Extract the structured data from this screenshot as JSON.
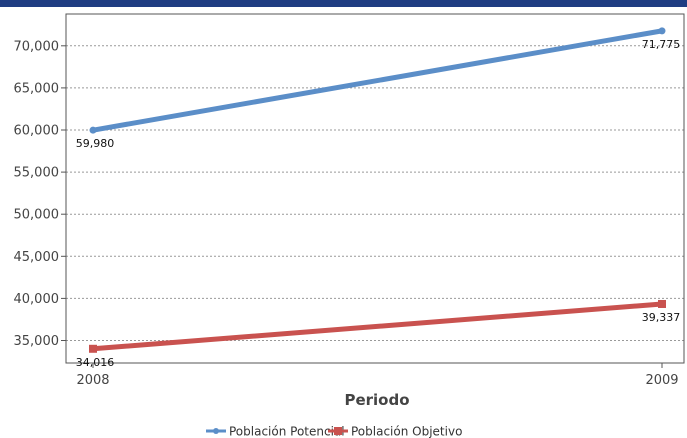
{
  "colors": {
    "top_bar": "#1f3d82",
    "gridline": "#999999",
    "axis": "#555555"
  },
  "chart_data": {
    "type": "line",
    "title": "",
    "xlabel": "Periodo",
    "ylabel": "",
    "categories": [
      "2008",
      "2009"
    ],
    "ylim": [
      32000,
      73000
    ],
    "yticks": [
      35000,
      40000,
      45000,
      50000,
      55000,
      60000,
      65000,
      70000
    ],
    "ytick_labels": [
      "35,000",
      "40,000",
      "45,000",
      "50,000",
      "55,000",
      "60,000",
      "65,000",
      "70,000"
    ],
    "grid": true,
    "legend_position": "bottom",
    "series": [
      {
        "name": "Población Potencial",
        "color": "#5b8ec8",
        "marker": "circle",
        "values": [
          59980,
          71775
        ],
        "labels": [
          "59,980",
          "71,775"
        ]
      },
      {
        "name": "Población Objetivo",
        "color": "#c9524f",
        "marker": "square",
        "values": [
          34016,
          39337
        ],
        "labels": [
          "34,016",
          "39,337"
        ]
      }
    ]
  }
}
